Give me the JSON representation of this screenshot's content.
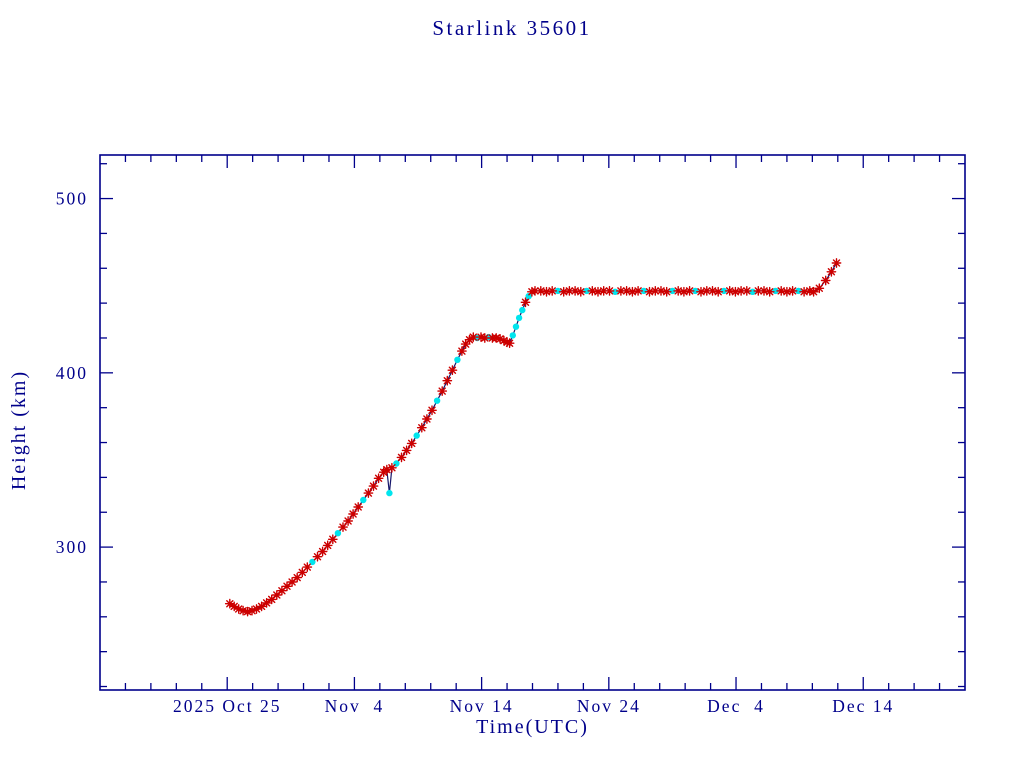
{
  "chart_data": {
    "type": "line",
    "title": "Starlink 35601",
    "xlabel": "Time(UTC)",
    "ylabel": "Height (km)",
    "x_unit": "days since axis left edge (2025 Oct 15 = 0, per tick labels)",
    "xlim": [
      0,
      68
    ],
    "ylim": [
      218,
      525
    ],
    "x_major_ticks": [
      {
        "day": 10,
        "label": "2025 Oct 25"
      },
      {
        "day": 20,
        "label": "Nov  4"
      },
      {
        "day": 30,
        "label": "Nov 14"
      },
      {
        "day": 40,
        "label": "Nov 24"
      },
      {
        "day": 50,
        "label": "Dec  4"
      },
      {
        "day": 60,
        "label": "Dec 14"
      }
    ],
    "x_minor_step_days": 2,
    "y_major_ticks": [
      300,
      400,
      500
    ],
    "y_minor_step": 20,
    "grid": false,
    "legend": "none",
    "colors": {
      "axis": "#00008B",
      "text": "#00008B",
      "line": "#16166B",
      "red_marker": "#CC0000",
      "cyan_marker": "#00E5EE",
      "background": "#FFFFFF"
    },
    "point_format": "[day, height_km, marker] where marker r=red asterisk, c=cyan dot",
    "points": [
      [
        10.2,
        267.5,
        "r"
      ],
      [
        10.55,
        266,
        "r"
      ],
      [
        10.9,
        264.5,
        "r"
      ],
      [
        11.25,
        263.5,
        "r"
      ],
      [
        11.6,
        263,
        "r"
      ],
      [
        11.95,
        263.5,
        "r"
      ],
      [
        12.3,
        264.5,
        "r"
      ],
      [
        12.7,
        266,
        "r"
      ],
      [
        13.1,
        268,
        "r"
      ],
      [
        13.5,
        270,
        "r"
      ],
      [
        13.9,
        272.5,
        "r"
      ],
      [
        14.3,
        275,
        "r"
      ],
      [
        14.7,
        277.5,
        "r"
      ],
      [
        15.1,
        280,
        "r"
      ],
      [
        15.5,
        282.5,
        "r"
      ],
      [
        15.9,
        285.5,
        "r"
      ],
      [
        16.3,
        288.5,
        "r"
      ],
      [
        16.7,
        291.5,
        "c"
      ],
      [
        17.1,
        294.5,
        "r"
      ],
      [
        17.5,
        297.5,
        "r"
      ],
      [
        17.9,
        301,
        "r"
      ],
      [
        18.3,
        304.5,
        "r"
      ],
      [
        18.7,
        308,
        "c"
      ],
      [
        19.1,
        311.5,
        "r"
      ],
      [
        19.5,
        315,
        "r"
      ],
      [
        19.9,
        319,
        "r"
      ],
      [
        20.3,
        323,
        "r"
      ],
      [
        20.7,
        327,
        "c"
      ],
      [
        21.1,
        331,
        "r"
      ],
      [
        21.5,
        335,
        "r"
      ],
      [
        21.9,
        339.5,
        "r"
      ],
      [
        22.3,
        343,
        "r"
      ],
      [
        22.55,
        344.5,
        "r"
      ],
      [
        22.75,
        331,
        "c"
      ],
      [
        22.95,
        345.5,
        "r"
      ],
      [
        23.3,
        348,
        "c"
      ],
      [
        23.7,
        351.5,
        "r"
      ],
      [
        24.1,
        355.5,
        "r"
      ],
      [
        24.5,
        359.5,
        "r"
      ],
      [
        24.9,
        364,
        "c"
      ],
      [
        25.3,
        368.5,
        "r"
      ],
      [
        25.7,
        373.5,
        "r"
      ],
      [
        26.1,
        378.5,
        "r"
      ],
      [
        26.5,
        384,
        "c"
      ],
      [
        26.9,
        389.5,
        "r"
      ],
      [
        27.3,
        395.5,
        "r"
      ],
      [
        27.7,
        401.5,
        "r"
      ],
      [
        28.1,
        407.5,
        "c"
      ],
      [
        28.45,
        412.5,
        "r"
      ],
      [
        28.75,
        416.5,
        "r"
      ],
      [
        29.05,
        419,
        "r"
      ],
      [
        29.35,
        420.5,
        "r"
      ],
      [
        29.65,
        420,
        "c"
      ],
      [
        29.95,
        420.5,
        "r"
      ],
      [
        30.25,
        420,
        "r"
      ],
      [
        30.55,
        420.5,
        "c"
      ],
      [
        30.85,
        420,
        "r"
      ],
      [
        31.15,
        420,
        "r"
      ],
      [
        31.45,
        419.5,
        "r"
      ],
      [
        31.75,
        418.5,
        "r"
      ],
      [
        32.0,
        417.5,
        "r"
      ],
      [
        32.2,
        417,
        "r"
      ],
      [
        32.45,
        421.5,
        "c"
      ],
      [
        32.7,
        426.5,
        "c"
      ],
      [
        32.95,
        431.5,
        "c"
      ],
      [
        33.2,
        436,
        "c"
      ],
      [
        33.45,
        440.5,
        "r"
      ],
      [
        33.7,
        444,
        "c"
      ],
      [
        33.95,
        446.5,
        "r"
      ],
      [
        34.2,
        447,
        "r"
      ],
      [
        34.65,
        447,
        "r"
      ],
      [
        35.1,
        446.5,
        "r"
      ],
      [
        35.55,
        447,
        "r"
      ],
      [
        36.0,
        447,
        "c"
      ],
      [
        36.45,
        446.5,
        "r"
      ],
      [
        36.9,
        447,
        "r"
      ],
      [
        37.35,
        447,
        "r"
      ],
      [
        37.8,
        446.5,
        "r"
      ],
      [
        38.25,
        447,
        "c"
      ],
      [
        38.7,
        447,
        "r"
      ],
      [
        39.15,
        446.5,
        "r"
      ],
      [
        39.6,
        447,
        "r"
      ],
      [
        40.05,
        447,
        "r"
      ],
      [
        40.5,
        446.5,
        "c"
      ],
      [
        40.95,
        447,
        "r"
      ],
      [
        41.4,
        447,
        "r"
      ],
      [
        41.85,
        446.5,
        "r"
      ],
      [
        42.3,
        447,
        "r"
      ],
      [
        42.75,
        447,
        "c"
      ],
      [
        43.2,
        446.5,
        "r"
      ],
      [
        43.65,
        447,
        "r"
      ],
      [
        44.1,
        447,
        "r"
      ],
      [
        44.55,
        446.5,
        "r"
      ],
      [
        45.0,
        447,
        "c"
      ],
      [
        45.45,
        447,
        "r"
      ],
      [
        45.9,
        446.5,
        "r"
      ],
      [
        46.35,
        447,
        "r"
      ],
      [
        46.8,
        447,
        "c"
      ],
      [
        47.25,
        446.5,
        "r"
      ],
      [
        47.7,
        447,
        "r"
      ],
      [
        48.15,
        447,
        "r"
      ],
      [
        48.6,
        446.5,
        "r"
      ],
      [
        49.05,
        447,
        "c"
      ],
      [
        49.5,
        447,
        "r"
      ],
      [
        49.95,
        446.5,
        "r"
      ],
      [
        50.4,
        447,
        "r"
      ],
      [
        50.85,
        447,
        "r"
      ],
      [
        51.3,
        446.5,
        "c"
      ],
      [
        51.75,
        447,
        "r"
      ],
      [
        52.2,
        447,
        "r"
      ],
      [
        52.65,
        446.5,
        "r"
      ],
      [
        53.1,
        447,
        "c"
      ],
      [
        53.55,
        447,
        "r"
      ],
      [
        54.0,
        446.5,
        "r"
      ],
      [
        54.45,
        447,
        "r"
      ],
      [
        54.9,
        447,
        "c"
      ],
      [
        55.35,
        446.5,
        "r"
      ],
      [
        55.8,
        447,
        "r"
      ],
      [
        56.1,
        446.5,
        "r"
      ],
      [
        56.55,
        448.5,
        "r"
      ],
      [
        57.05,
        453,
        "r"
      ],
      [
        57.5,
        458,
        "r"
      ],
      [
        57.9,
        463,
        "r"
      ]
    ]
  }
}
